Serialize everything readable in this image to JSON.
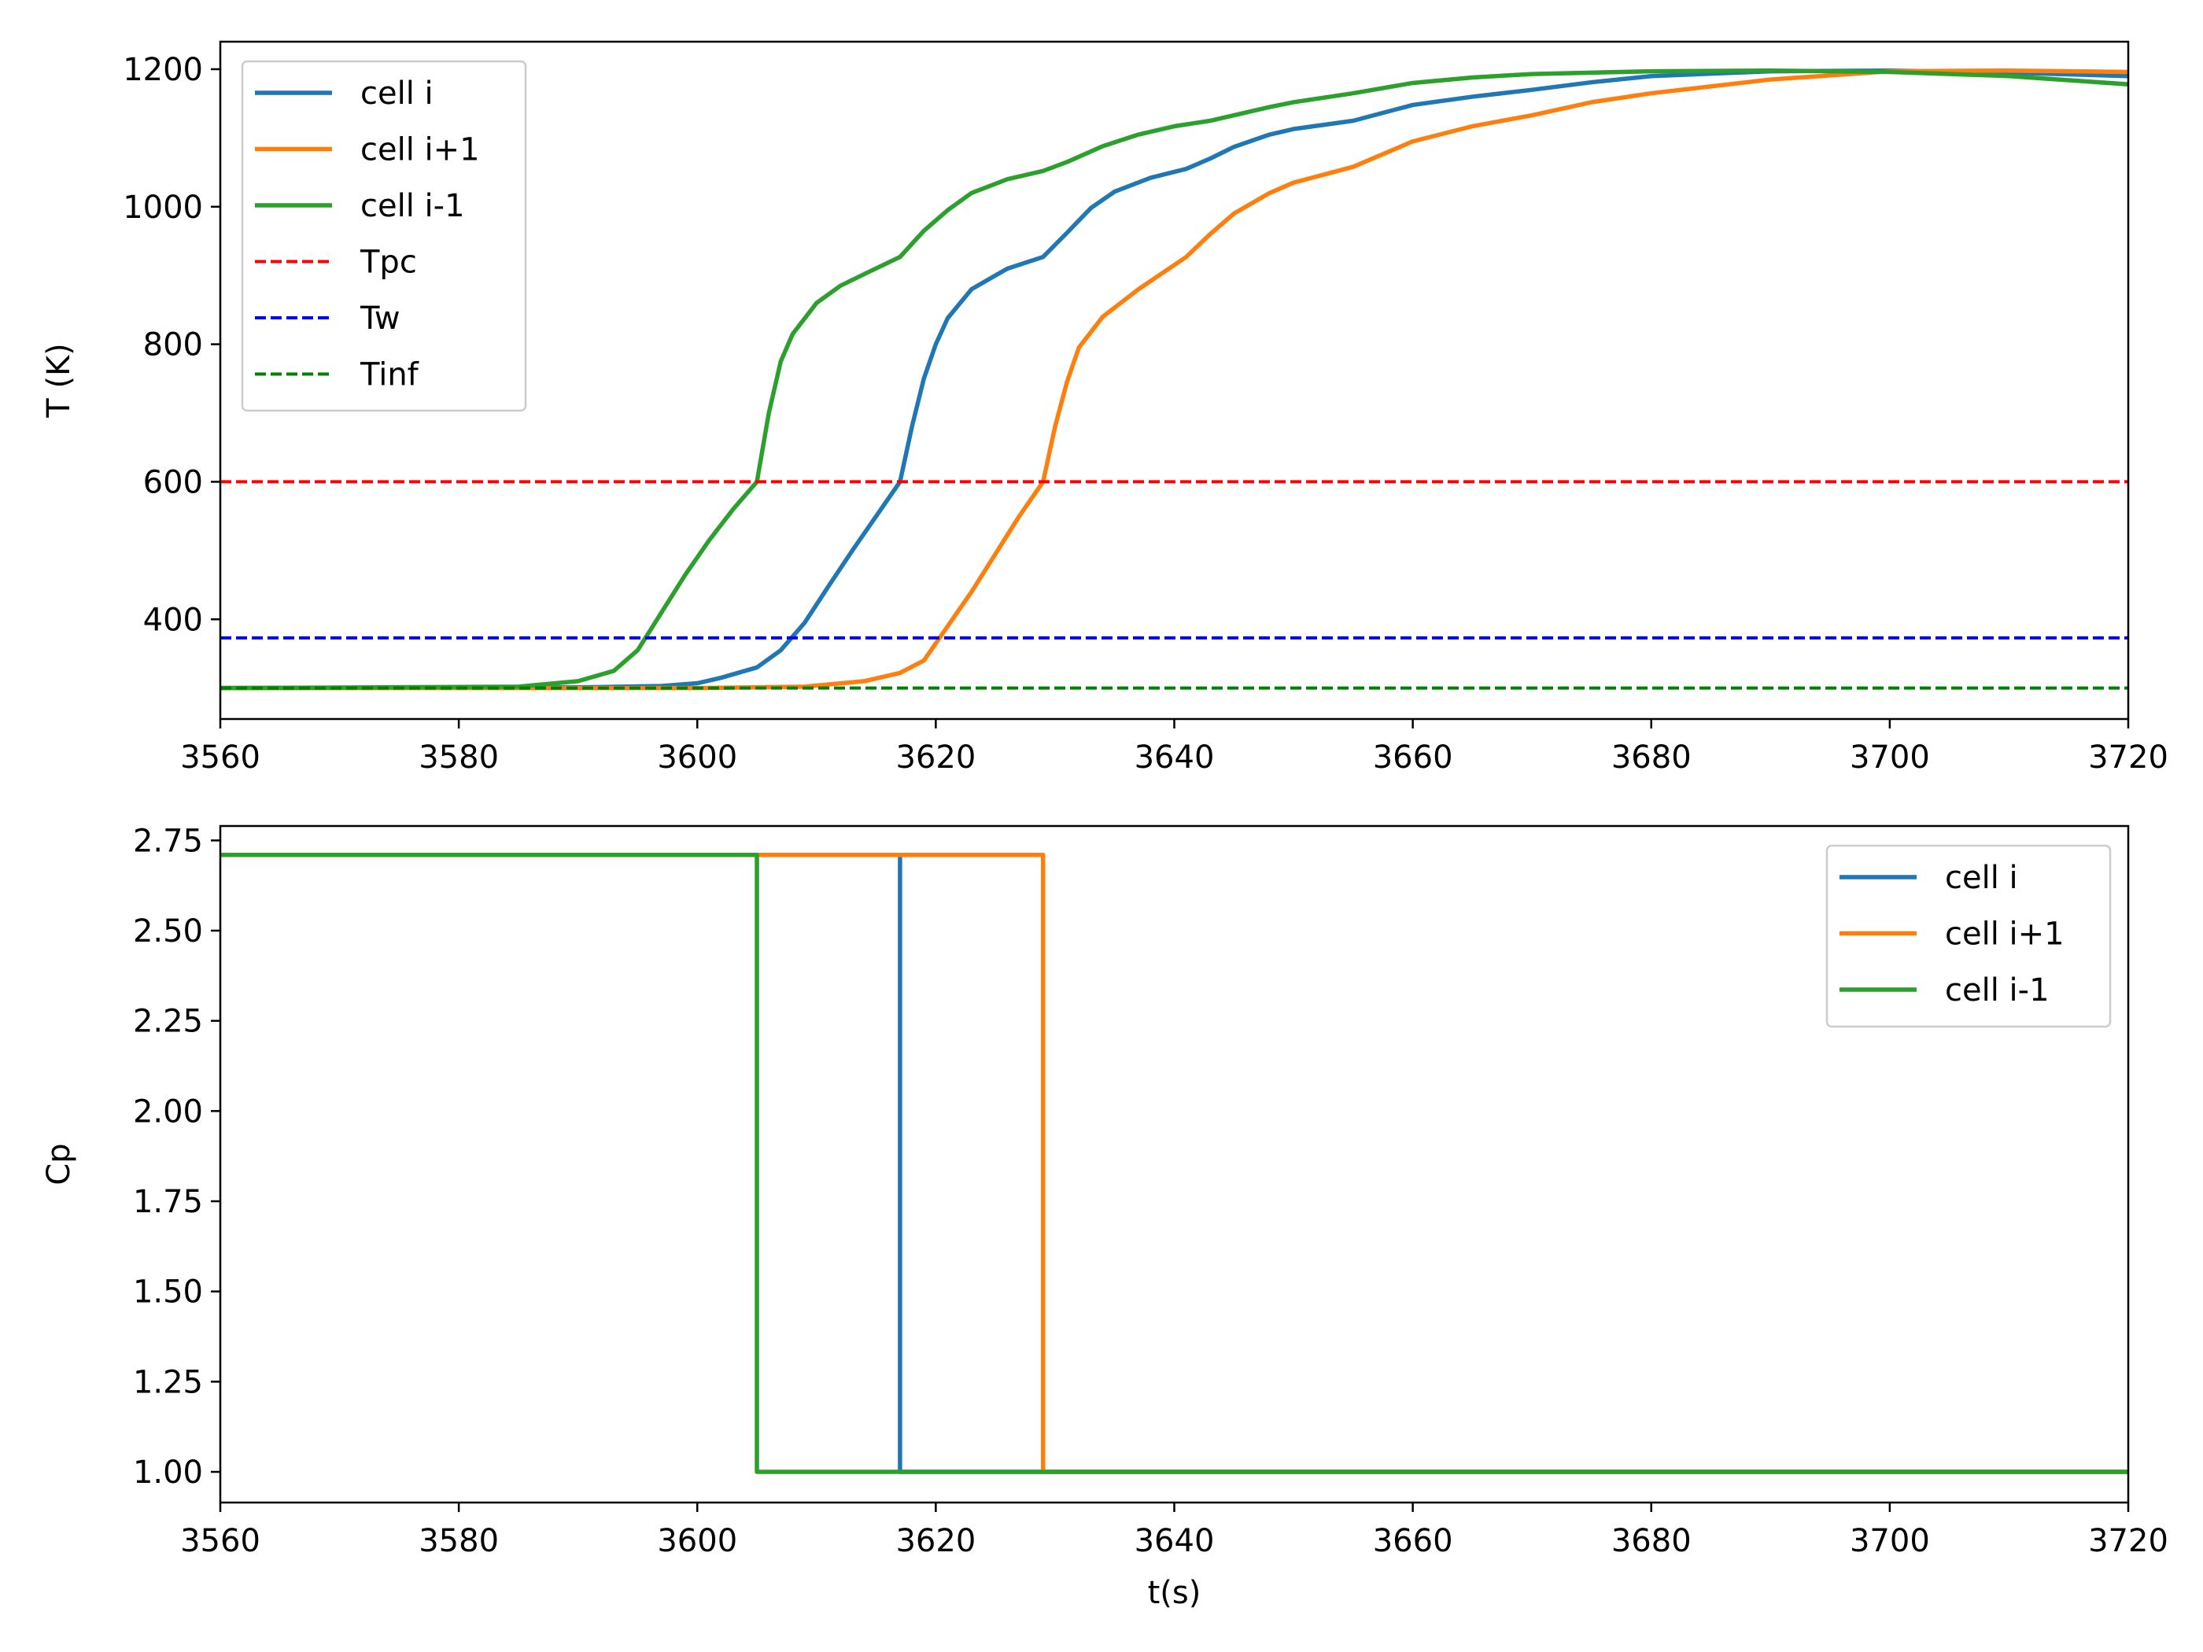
{
  "chart_data": [
    {
      "type": "line",
      "xlabel": "",
      "ylabel": "T (K)",
      "xlim": [
        3560,
        3720
      ],
      "ylim": [
        255,
        1240
      ],
      "xticks": [
        3560,
        3580,
        3600,
        3620,
        3640,
        3660,
        3680,
        3700,
        3720
      ],
      "yticks": [
        400,
        600,
        800,
        1000,
        1200
      ],
      "grid": false,
      "legend_position": "upper-left",
      "series": [
        {
          "name": "cell i",
          "color": "#1f77b4",
          "style": "solid",
          "x": [
            3560,
            3590,
            3597,
            3600,
            3602,
            3605,
            3607,
            3609,
            3611,
            3613,
            3615,
            3617,
            3618,
            3619,
            3620,
            3621,
            3623,
            3626,
            3629,
            3631,
            3633,
            3635,
            3638,
            3641,
            3643,
            3645,
            3648,
            3650,
            3655,
            3660,
            3665,
            3670,
            3675,
            3680,
            3690,
            3700,
            3710,
            3720
          ],
          "y": [
            300,
            301,
            303,
            307,
            315,
            330,
            355,
            395,
            448,
            500,
            550,
            600,
            680,
            750,
            800,
            838,
            880,
            910,
            927,
            962,
            998,
            1022,
            1042,
            1055,
            1070,
            1087,
            1105,
            1113,
            1125,
            1148,
            1160,
            1170,
            1181,
            1190,
            1197,
            1198,
            1195,
            1190
          ]
        },
        {
          "name": "cell i+1",
          "color": "#ff7f0e",
          "style": "solid",
          "x": [
            3560,
            3600,
            3609,
            3614,
            3617,
            3619,
            3621,
            3623,
            3625,
            3627,
            3629,
            3630,
            3631,
            3632,
            3634,
            3637,
            3641,
            3643,
            3645,
            3648,
            3650,
            3655,
            3660,
            3665,
            3670,
            3675,
            3680,
            3690,
            3700,
            3710,
            3720
          ],
          "y": [
            300,
            300,
            302,
            310,
            322,
            340,
            390,
            440,
            495,
            550,
            600,
            680,
            745,
            795,
            840,
            880,
            927,
            960,
            990,
            1020,
            1035,
            1058,
            1095,
            1117,
            1133,
            1152,
            1165,
            1185,
            1197,
            1198,
            1196
          ]
        },
        {
          "name": "cell i-1",
          "color": "#2ca02c",
          "style": "solid",
          "x": [
            3560,
            3585,
            3590,
            3593,
            3595,
            3597,
            3599,
            3601,
            3603,
            3605,
            3606,
            3607,
            3608,
            3610,
            3612,
            3614,
            3617,
            3619,
            3621,
            3623,
            3626,
            3629,
            3631,
            3634,
            3637,
            3640,
            3643,
            3645,
            3648,
            3650,
            3655,
            3660,
            3665,
            3670,
            3680,
            3690,
            3700,
            3710,
            3720
          ],
          "y": [
            300,
            302,
            310,
            325,
            355,
            410,
            465,
            515,
            560,
            600,
            700,
            775,
            815,
            860,
            885,
            902,
            927,
            965,
            995,
            1020,
            1040,
            1052,
            1065,
            1088,
            1105,
            1117,
            1125,
            1133,
            1145,
            1152,
            1165,
            1180,
            1188,
            1193,
            1197,
            1198,
            1196,
            1190,
            1178
          ]
        },
        {
          "name": "Tpc",
          "color": "#ff0000",
          "style": "dashed",
          "x": [
            3560,
            3720
          ],
          "y": [
            600,
            600
          ]
        },
        {
          "name": "Tw",
          "color": "#0000ff",
          "style": "dashed",
          "x": [
            3560,
            3720
          ],
          "y": [
            373,
            373
          ]
        },
        {
          "name": "Tinf",
          "color": "#008000",
          "style": "dashed",
          "x": [
            3560,
            3720
          ],
          "y": [
            300,
            300
          ]
        }
      ]
    },
    {
      "type": "line",
      "xlabel": "t(s)",
      "ylabel": "Cp",
      "xlim": [
        3560,
        3720
      ],
      "ylim": [
        0.915,
        2.79
      ],
      "xticks": [
        3560,
        3580,
        3600,
        3620,
        3640,
        3660,
        3680,
        3700,
        3720
      ],
      "yticks": [
        1.0,
        1.25,
        1.5,
        1.75,
        2.0,
        2.25,
        2.5,
        2.75
      ],
      "grid": false,
      "legend_position": "upper-right",
      "series": [
        {
          "name": "cell i",
          "color": "#1f77b4",
          "style": "solid",
          "x": [
            3560,
            3617,
            3617,
            3720
          ],
          "y": [
            2.71,
            2.71,
            1.0,
            1.0
          ]
        },
        {
          "name": "cell i+1",
          "color": "#ff7f0e",
          "style": "solid",
          "x": [
            3560,
            3629,
            3629,
            3720
          ],
          "y": [
            2.71,
            2.71,
            1.0,
            1.0
          ]
        },
        {
          "name": "cell i-1",
          "color": "#2ca02c",
          "style": "solid",
          "x": [
            3560,
            3605,
            3605,
            3720
          ],
          "y": [
            2.71,
            2.71,
            1.0,
            1.0
          ]
        }
      ]
    }
  ]
}
